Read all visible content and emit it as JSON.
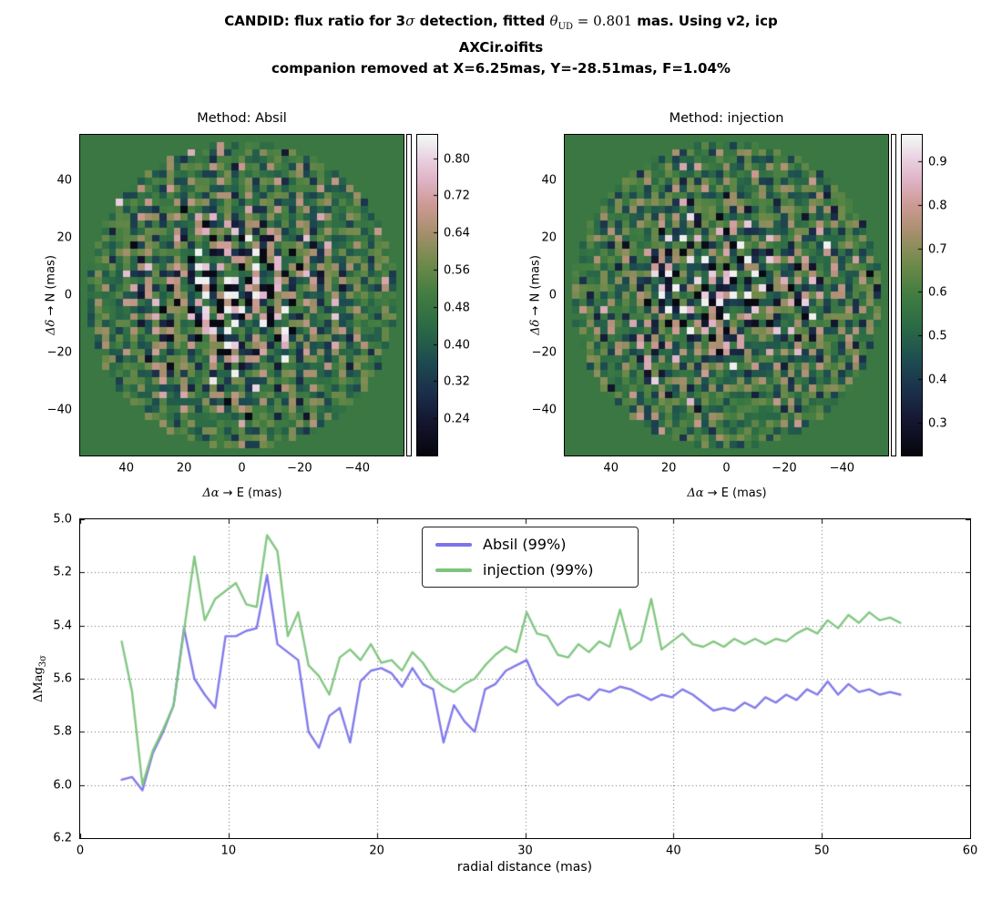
{
  "title": {
    "l1_pre": "CANDID: flux ratio for 3",
    "l1_sigma": "σ",
    "l1_mid": " detection, fitted ",
    "l1_theta": "θ",
    "l1_theta_sub": "UD",
    "l1_eq": " = 0.801",
    "l1_post": " mas. Using v2, icp",
    "line2": "AXCir.oifits",
    "line3": "companion removed at X=6.25mas, Y=-28.51mas, F=1.04%"
  },
  "colors": {
    "absil_line": "#7b74ea",
    "injection_line": "#7dc47d",
    "grid_line": "#444444",
    "colormap_stops": [
      {
        "t": 0.0,
        "c": "#06060d"
      },
      {
        "t": 0.1,
        "c": "#14142e"
      },
      {
        "t": 0.2,
        "c": "#1b2f4b"
      },
      {
        "t": 0.3,
        "c": "#1d4d50"
      },
      {
        "t": 0.4,
        "c": "#2a6a46"
      },
      {
        "t": 0.5,
        "c": "#417c41"
      },
      {
        "t": 0.6,
        "c": "#6f8a4a"
      },
      {
        "t": 0.7,
        "c": "#a98f6f"
      },
      {
        "t": 0.78,
        "c": "#cc9a93"
      },
      {
        "t": 0.86,
        "c": "#dfb3c6"
      },
      {
        "t": 0.93,
        "c": "#e9d3e3"
      },
      {
        "t": 1.0,
        "c": "#f2fbf4"
      }
    ]
  },
  "chart_data": [
    {
      "type": "heatmap",
      "id": "absil",
      "title": "Method: Absil",
      "xlabel_math": "Δα",
      "xlabel_rest": " → E (mas)",
      "ylabel_math": "Δδ",
      "ylabel_rest": " → N (mas)",
      "x_axis": {
        "range": [
          56,
          -56
        ],
        "ticks": [
          {
            "v": 40,
            "l": "40"
          },
          {
            "v": 20,
            "l": "20"
          },
          {
            "v": 0,
            "l": "0"
          },
          {
            "v": -20,
            "l": "−20"
          },
          {
            "v": -40,
            "l": "−40"
          }
        ]
      },
      "y_axis": {
        "range": [
          -56,
          56
        ],
        "ticks": [
          {
            "v": 40,
            "l": "40"
          },
          {
            "v": 20,
            "l": "20"
          },
          {
            "v": 0,
            "l": "0"
          },
          {
            "v": -20,
            "l": "−20"
          },
          {
            "v": -40,
            "l": "−40"
          }
        ]
      },
      "colorbar": {
        "range": [
          0.16,
          0.85
        ],
        "ticks": [
          {
            "v": 0.8,
            "l": "0.80"
          },
          {
            "v": 0.72,
            "l": "0.72"
          },
          {
            "v": 0.64,
            "l": "0.64"
          },
          {
            "v": 0.56,
            "l": "0.56"
          },
          {
            "v": 0.48,
            "l": "0.48"
          },
          {
            "v": 0.4,
            "l": "0.40"
          },
          {
            "v": 0.32,
            "l": "0.32"
          },
          {
            "v": 0.24,
            "l": "0.24"
          }
        ]
      },
      "map_radius_mas": 54,
      "background_value": 0.47,
      "grid_cells": 45
    },
    {
      "type": "heatmap",
      "id": "injection",
      "title": "Method: injection",
      "xlabel_math": "Δα",
      "xlabel_rest": " → E (mas)",
      "ylabel_math": "Δδ",
      "ylabel_rest": " → N (mas)",
      "x_axis": {
        "range": [
          56,
          -56
        ],
        "ticks": [
          {
            "v": 40,
            "l": "40"
          },
          {
            "v": 20,
            "l": "20"
          },
          {
            "v": 0,
            "l": "0"
          },
          {
            "v": -20,
            "l": "−20"
          },
          {
            "v": -40,
            "l": "−40"
          }
        ]
      },
      "y_axis": {
        "range": [
          -56,
          56
        ],
        "ticks": [
          {
            "v": 40,
            "l": "40"
          },
          {
            "v": 20,
            "l": "20"
          },
          {
            "v": 0,
            "l": "0"
          },
          {
            "v": -20,
            "l": "−20"
          },
          {
            "v": -40,
            "l": "−40"
          }
        ]
      },
      "colorbar": {
        "range": [
          0.225,
          0.96
        ],
        "ticks": [
          {
            "v": 0.9,
            "l": "0.9"
          },
          {
            "v": 0.8,
            "l": "0.8"
          },
          {
            "v": 0.7,
            "l": "0.7"
          },
          {
            "v": 0.6,
            "l": "0.6"
          },
          {
            "v": 0.5,
            "l": "0.5"
          },
          {
            "v": 0.4,
            "l": "0.4"
          },
          {
            "v": 0.3,
            "l": "0.3"
          }
        ]
      },
      "map_radius_mas": 54,
      "background_value": 0.47,
      "grid_cells": 45
    },
    {
      "type": "line",
      "xlabel": "radial distance (mas)",
      "ylabel_pre": "ΔMag",
      "ylabel_sub": "3σ",
      "x_axis": {
        "range": [
          0,
          60
        ],
        "ticks": [
          {
            "v": 0,
            "l": "0"
          },
          {
            "v": 10,
            "l": "10"
          },
          {
            "v": 20,
            "l": "20"
          },
          {
            "v": 30,
            "l": "30"
          },
          {
            "v": 40,
            "l": "40"
          },
          {
            "v": 50,
            "l": "50"
          },
          {
            "v": 60,
            "l": "60"
          }
        ]
      },
      "y_axis": {
        "range": [
          5.0,
          6.2
        ],
        "inverted": true,
        "ticks": [
          {
            "v": 5.0,
            "l": "5.0"
          },
          {
            "v": 5.2,
            "l": "5.2"
          },
          {
            "v": 5.4,
            "l": "5.4"
          },
          {
            "v": 5.6,
            "l": "5.6"
          },
          {
            "v": 5.8,
            "l": "5.8"
          },
          {
            "v": 6.0,
            "l": "6.0"
          },
          {
            "v": 6.2,
            "l": "6.2"
          }
        ]
      },
      "grid": true,
      "legend_position": "upper-center",
      "x": [
        2.8,
        3.5,
        4.2,
        4.9,
        5.6,
        6.3,
        7.0,
        7.7,
        8.4,
        9.1,
        9.8,
        10.5,
        11.2,
        11.9,
        12.6,
        13.3,
        14.0,
        14.7,
        15.4,
        16.1,
        16.8,
        17.5,
        18.2,
        18.9,
        19.6,
        20.3,
        21.0,
        21.7,
        22.4,
        23.1,
        23.8,
        24.5,
        25.2,
        25.9,
        26.6,
        27.3,
        28.0,
        28.7,
        29.4,
        30.1,
        30.8,
        31.5,
        32.2,
        32.9,
        33.6,
        34.3,
        35.0,
        35.7,
        36.4,
        37.1,
        37.8,
        38.5,
        39.2,
        39.9,
        40.6,
        41.3,
        42.0,
        42.7,
        43.4,
        44.1,
        44.8,
        45.5,
        46.2,
        46.9,
        47.6,
        48.3,
        49.0,
        49.7,
        50.4,
        51.1,
        51.8,
        52.5,
        53.2,
        53.9,
        54.6,
        55.3
      ],
      "series": [
        {
          "name": "Absil (99%)",
          "color": "#7b74ea",
          "y": [
            5.98,
            5.97,
            6.02,
            5.88,
            5.8,
            5.7,
            5.41,
            5.6,
            5.66,
            5.71,
            5.44,
            5.44,
            5.42,
            5.41,
            5.21,
            5.47,
            5.5,
            5.53,
            5.8,
            5.86,
            5.74,
            5.71,
            5.84,
            5.61,
            5.57,
            5.56,
            5.58,
            5.63,
            5.56,
            5.62,
            5.64,
            5.84,
            5.7,
            5.76,
            5.8,
            5.64,
            5.62,
            5.57,
            5.55,
            5.53,
            5.62,
            5.66,
            5.7,
            5.67,
            5.66,
            5.68,
            5.64,
            5.65,
            5.63,
            5.64,
            5.66,
            5.68,
            5.66,
            5.67,
            5.64,
            5.66,
            5.69,
            5.72,
            5.71,
            5.72,
            5.69,
            5.71,
            5.67,
            5.69,
            5.66,
            5.68,
            5.64,
            5.66,
            5.61,
            5.66,
            5.62,
            5.65,
            5.64,
            5.66,
            5.65,
            5.66
          ]
        },
        {
          "name": "injection (99%)",
          "color": "#7dc47d",
          "y": [
            5.46,
            5.65,
            6.0,
            5.87,
            5.79,
            5.7,
            5.42,
            5.14,
            5.38,
            5.3,
            5.27,
            5.24,
            5.32,
            5.33,
            5.06,
            5.12,
            5.44,
            5.35,
            5.55,
            5.59,
            5.66,
            5.52,
            5.49,
            5.53,
            5.47,
            5.54,
            5.53,
            5.57,
            5.5,
            5.54,
            5.6,
            5.63,
            5.65,
            5.62,
            5.6,
            5.55,
            5.51,
            5.48,
            5.5,
            5.35,
            5.43,
            5.44,
            5.51,
            5.52,
            5.47,
            5.5,
            5.46,
            5.48,
            5.34,
            5.49,
            5.46,
            5.3,
            5.49,
            5.46,
            5.43,
            5.47,
            5.48,
            5.46,
            5.48,
            5.45,
            5.47,
            5.45,
            5.47,
            5.45,
            5.46,
            5.43,
            5.41,
            5.43,
            5.38,
            5.41,
            5.36,
            5.39,
            5.35,
            5.38,
            5.37,
            5.39
          ]
        }
      ]
    }
  ]
}
